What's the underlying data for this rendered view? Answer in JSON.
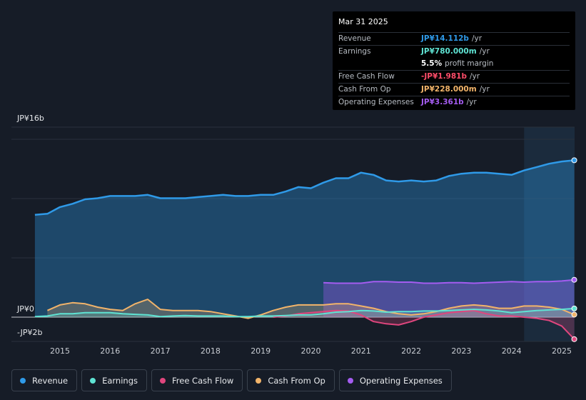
{
  "tooltip": {
    "date": "Mar 31 2025",
    "rows": [
      {
        "label": "Revenue",
        "value": "JP¥14.112b",
        "unit": "/yr",
        "color": "#2f9ae8"
      },
      {
        "label": "Earnings",
        "value": "JP¥780.000m",
        "unit": "/yr",
        "color": "#5fe3d3"
      },
      {
        "label": "",
        "value": "5.5%",
        "unit": "profit margin",
        "color": "#ffffff"
      },
      {
        "label": "Free Cash Flow",
        "value": "-JP¥1.981b",
        "unit": "/yr",
        "color": "#ff4d6a"
      },
      {
        "label": "Cash From Op",
        "value": "JP¥228.000m",
        "unit": "/yr",
        "color": "#f2b46a"
      },
      {
        "label": "Operating Expenses",
        "value": "JP¥3.361b",
        "unit": "/yr",
        "color": "#a45cf0"
      }
    ]
  },
  "legend": [
    {
      "label": "Revenue",
      "color": "#2f9ae8"
    },
    {
      "label": "Earnings",
      "color": "#5fe3d3"
    },
    {
      "label": "Free Cash Flow",
      "color": "#e0467e"
    },
    {
      "label": "Cash From Op",
      "color": "#f2b46a"
    },
    {
      "label": "Operating Expenses",
      "color": "#a45cf0"
    }
  ],
  "chart_data": {
    "type": "line",
    "title": "",
    "unit": "JP¥b",
    "ylim": [
      -2,
      16
    ],
    "y_tick_labels": [
      "JP¥16b",
      "JP¥0",
      "-JP¥2b"
    ],
    "x_tick_labels": [
      "2015",
      "2016",
      "2017",
      "2018",
      "2019",
      "2020",
      "2021",
      "2022",
      "2023",
      "2024",
      "2025"
    ],
    "x_range": [
      2014.0,
      2025.3
    ],
    "forecast_shade_start": 2024.25,
    "series": [
      {
        "name": "Revenue",
        "color": "#2f9ae8",
        "x": [
          2014.5,
          2014.75,
          2015.0,
          2015.25,
          2015.5,
          2015.75,
          2016.0,
          2016.25,
          2016.5,
          2016.75,
          2017.0,
          2017.25,
          2017.5,
          2017.75,
          2018.0,
          2018.25,
          2018.5,
          2018.75,
          2019.0,
          2019.25,
          2019.5,
          2019.75,
          2020.0,
          2020.25,
          2020.5,
          2020.75,
          2021.0,
          2021.25,
          2021.5,
          2021.75,
          2022.0,
          2022.25,
          2022.5,
          2022.75,
          2023.0,
          2023.25,
          2023.5,
          2023.75,
          2024.0,
          2024.25,
          2024.5,
          2024.75,
          2025.0,
          2025.25
        ],
        "values": [
          9.2,
          9.3,
          9.9,
          10.2,
          10.6,
          10.7,
          10.9,
          10.9,
          10.9,
          11.0,
          10.7,
          10.7,
          10.7,
          10.8,
          10.9,
          11.0,
          10.9,
          10.9,
          11.0,
          11.0,
          11.3,
          11.7,
          11.6,
          12.1,
          12.5,
          12.5,
          13.0,
          12.8,
          12.3,
          12.2,
          12.3,
          12.2,
          12.3,
          12.7,
          12.9,
          13.0,
          13.0,
          12.9,
          12.8,
          13.2,
          13.5,
          13.8,
          14.0,
          14.112
        ]
      },
      {
        "name": "Earnings",
        "color": "#5fe3d3",
        "x": [
          2014.5,
          2014.75,
          2015.0,
          2015.25,
          2015.5,
          2015.75,
          2016.0,
          2016.25,
          2016.5,
          2016.75,
          2017.0,
          2017.25,
          2017.5,
          2017.75,
          2018.0,
          2018.25,
          2018.5,
          2018.75,
          2019.0,
          2019.25,
          2019.5,
          2019.75,
          2020.0,
          2020.25,
          2020.5,
          2020.75,
          2021.0,
          2021.25,
          2021.5,
          2021.75,
          2022.0,
          2022.25,
          2022.5,
          2022.75,
          2023.0,
          2023.25,
          2023.5,
          2023.75,
          2024.0,
          2024.25,
          2024.5,
          2024.75,
          2025.0,
          2025.25
        ],
        "values": [
          0.05,
          0.1,
          0.3,
          0.3,
          0.4,
          0.4,
          0.4,
          0.3,
          0.25,
          0.2,
          0.05,
          0.1,
          0.15,
          0.1,
          0.1,
          0.1,
          0.05,
          0.05,
          0.1,
          0.1,
          0.15,
          0.2,
          0.2,
          0.3,
          0.45,
          0.5,
          0.6,
          0.55,
          0.45,
          0.5,
          0.5,
          0.55,
          0.55,
          0.6,
          0.65,
          0.7,
          0.65,
          0.55,
          0.4,
          0.5,
          0.6,
          0.65,
          0.7,
          0.78
        ]
      },
      {
        "name": "Free Cash Flow",
        "color": "#e0467e",
        "x": [
          2019.25,
          2019.5,
          2019.75,
          2020.0,
          2020.25,
          2020.5,
          2020.75,
          2021.0,
          2021.25,
          2021.5,
          2021.75,
          2022.0,
          2022.25,
          2022.5,
          2022.75,
          2023.0,
          2023.25,
          2023.5,
          2023.75,
          2024.0,
          2024.25,
          2024.5,
          2024.75,
          2025.0,
          2025.25
        ],
        "values": [
          0.0,
          0.1,
          0.3,
          0.4,
          0.5,
          0.6,
          0.55,
          0.2,
          -0.4,
          -0.6,
          -0.7,
          -0.4,
          0.0,
          0.2,
          0.4,
          0.5,
          0.6,
          0.3,
          0.1,
          0.1,
          0.0,
          -0.1,
          -0.3,
          -0.8,
          -1.981
        ]
      },
      {
        "name": "Cash From Op",
        "color": "#f2b46a",
        "x": [
          2014.75,
          2015.0,
          2015.25,
          2015.5,
          2015.75,
          2016.0,
          2016.25,
          2016.5,
          2016.75,
          2017.0,
          2017.25,
          2017.5,
          2017.75,
          2018.0,
          2018.25,
          2018.5,
          2018.75,
          2019.0,
          2019.25,
          2019.5,
          2019.75,
          2020.0,
          2020.25,
          2020.5,
          2020.75,
          2021.0,
          2021.25,
          2021.5,
          2021.75,
          2022.0,
          2022.25,
          2022.5,
          2022.75,
          2023.0,
          2023.25,
          2023.5,
          2023.75,
          2024.0,
          2024.25,
          2024.5,
          2024.75,
          2025.0,
          2025.25
        ],
        "values": [
          0.6,
          1.1,
          1.3,
          1.2,
          0.9,
          0.7,
          0.6,
          1.2,
          1.6,
          0.7,
          0.6,
          0.6,
          0.6,
          0.5,
          0.3,
          0.1,
          -0.1,
          0.2,
          0.6,
          0.9,
          1.1,
          1.1,
          1.1,
          1.2,
          1.2,
          1.0,
          0.8,
          0.5,
          0.3,
          0.2,
          0.3,
          0.5,
          0.8,
          1.0,
          1.1,
          1.0,
          0.8,
          0.8,
          1.0,
          1.0,
          0.9,
          0.7,
          0.228
        ]
      },
      {
        "name": "Operating Expenses",
        "color": "#a45cf0",
        "x": [
          2020.25,
          2020.5,
          2020.75,
          2021.0,
          2021.25,
          2021.5,
          2021.75,
          2022.0,
          2022.25,
          2022.5,
          2022.75,
          2023.0,
          2023.25,
          2023.5,
          2023.75,
          2024.0,
          2024.25,
          2024.5,
          2024.75,
          2025.0,
          2025.25
        ],
        "values": [
          3.1,
          3.05,
          3.05,
          3.05,
          3.2,
          3.2,
          3.15,
          3.15,
          3.05,
          3.05,
          3.1,
          3.1,
          3.05,
          3.1,
          3.15,
          3.2,
          3.15,
          3.2,
          3.2,
          3.25,
          3.361
        ]
      }
    ]
  }
}
